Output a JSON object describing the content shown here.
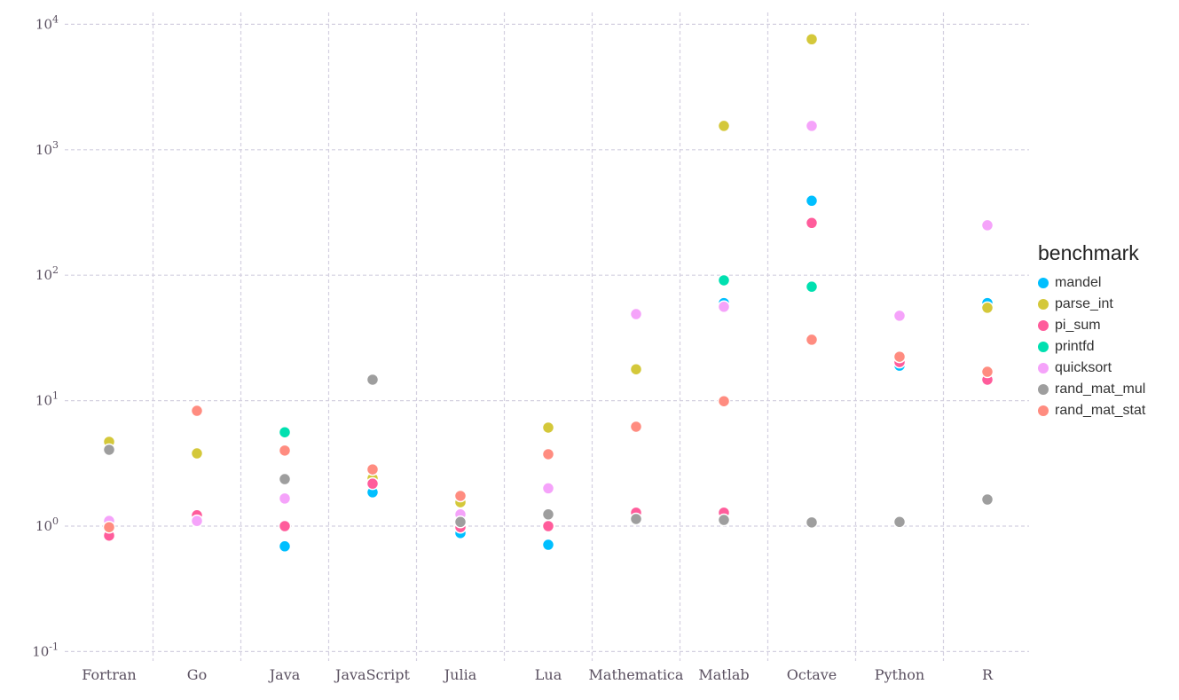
{
  "chart_data": {
    "type": "scatter",
    "title": "",
    "xlabel": "",
    "ylabel": "",
    "yscale": "log10",
    "ylim": [
      0.1,
      10000
    ],
    "grid": true,
    "legend_position": "right",
    "legend_title": "benchmark",
    "categories": [
      "Fortran",
      "Go",
      "Java",
      "JavaScript",
      "Julia",
      "Lua",
      "Mathematica",
      "Matlab",
      "Octave",
      "Python",
      "R"
    ],
    "yticks": [
      {
        "value": 10000,
        "base": "10",
        "exp": "4"
      },
      {
        "value": 1000,
        "base": "10",
        "exp": "3"
      },
      {
        "value": 100,
        "base": "10",
        "exp": "2"
      },
      {
        "value": 10,
        "base": "10",
        "exp": "1"
      },
      {
        "value": 1,
        "base": "10",
        "exp": "0"
      },
      {
        "value": 0.1,
        "base": "10",
        "exp": "-1"
      }
    ],
    "series": [
      {
        "name": "mandel",
        "color": "#00BFFF",
        "values": [
          null,
          null,
          0.69,
          1.86,
          0.88,
          0.71,
          null,
          60,
          392,
          19.0,
          60
        ]
      },
      {
        "name": "parse_int",
        "color": "#D4C83A",
        "values": [
          4.7,
          3.8,
          null,
          2.4,
          1.55,
          6.1,
          17.8,
          1550,
          7600,
          null,
          55
        ]
      },
      {
        "name": "pi_sum",
        "color": "#FF5C9B",
        "values": [
          0.84,
          1.22,
          1.0,
          2.18,
          0.98,
          1.0,
          1.28,
          1.28,
          261,
          20.3,
          14.7
        ]
      },
      {
        "name": "printfd",
        "color": "#00E0B0",
        "values": [
          null,
          null,
          5.6,
          null,
          null,
          null,
          null,
          91,
          81,
          null,
          null
        ]
      },
      {
        "name": "quicksort",
        "color": "#F5A3FA",
        "values": [
          1.1,
          1.1,
          1.66,
          null,
          1.24,
          2.0,
          49,
          56,
          1550,
          47.5,
          250
        ]
      },
      {
        "name": "rand_mat_mul",
        "color": "#9E9E9E",
        "values": [
          4.06,
          null,
          2.37,
          14.7,
          1.08,
          1.24,
          1.14,
          1.12,
          1.07,
          1.08,
          1.63
        ]
      },
      {
        "name": "rand_mat_stat",
        "color": "#FF8C80",
        "values": [
          0.98,
          8.3,
          4.0,
          2.83,
          1.74,
          3.74,
          6.2,
          9.9,
          30.6,
          22.4,
          17
        ]
      }
    ]
  }
}
